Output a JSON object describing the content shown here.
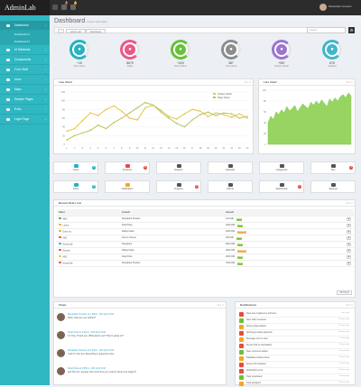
{
  "header": {
    "logo": "AdminLab",
    "badge1": "6",
    "badge2": "8",
    "user": "Mosaddek Hossain"
  },
  "sidebar": [
    {
      "label": "Dashboard",
      "active": true
    },
    {
      "label": "Dashboard 1",
      "sub": true
    },
    {
      "label": "Dashboard 2",
      "sub": true
    },
    {
      "label": "UI Elements"
    },
    {
      "label": "Components"
    },
    {
      "label": "Form Stuff"
    },
    {
      "label": "Icons"
    },
    {
      "label": "Maps"
    },
    {
      "label": "Sample Pages"
    },
    {
      "label": "Extra"
    },
    {
      "label": "Login Page"
    }
  ],
  "page": {
    "title": "Dashboard",
    "subtitle": "Content Information",
    "crumbs": [
      "Admin Lab",
      "Dashboard"
    ],
    "search_placeholder": "Search"
  },
  "stats": [
    {
      "value": "+10",
      "label": "New Users",
      "color": "#27b2bf"
    },
    {
      "value": "8675",
      "label": "Sales",
      "color": "#e95987"
    },
    {
      "value": "+320",
      "label": "New Orders",
      "color": "#68c13a"
    },
    {
      "value": "387",
      "label": "Comments",
      "color": "#8d8d8d"
    },
    {
      "value": "+987",
      "label": "Unique Visitor",
      "color": "#9b75d1"
    },
    {
      "value": "678",
      "label": "Updates",
      "color": "#42b6c9"
    }
  ],
  "charts": {
    "line_title": "Line Chart",
    "live_title": "Live Chart"
  },
  "chart_data": [
    {
      "type": "line",
      "title": "Line Chart",
      "categories": [
        "1",
        "2",
        "3",
        "4",
        "5",
        "6",
        "7",
        "8",
        "9",
        "10",
        "11",
        "12",
        "13",
        "14",
        "15",
        "16",
        "17",
        "18",
        "19",
        "20",
        "21",
        "22",
        "23",
        "24"
      ],
      "ylim": [
        0,
        120
      ],
      "legend": "top-right",
      "series": [
        {
          "name": "Unique Visitor",
          "color": "#e7c446",
          "values": [
            30,
            36,
            54,
            72,
            66,
            80,
            88,
            76,
            60,
            56,
            84,
            90,
            78,
            64,
            58,
            70,
            80,
            76,
            64,
            72,
            68,
            62,
            70,
            60
          ]
        },
        {
          "name": "Page Views",
          "color": "#b7c45a",
          "values": [
            10,
            20,
            26,
            32,
            44,
            36,
            50,
            60,
            72,
            84,
            96,
            90,
            74,
            60,
            48,
            40,
            56,
            68,
            74,
            66,
            72,
            70,
            60,
            64
          ]
        }
      ]
    },
    {
      "type": "area",
      "title": "Live Chart",
      "ylim": [
        0,
        100
      ],
      "series": [
        {
          "name": "",
          "color": "#85cc47",
          "values": [
            40,
            52,
            46,
            60,
            55,
            64,
            58,
            70,
            62,
            66,
            72,
            60,
            68,
            75,
            70,
            66,
            78,
            72,
            80,
            74,
            82,
            76,
            70,
            84,
            78,
            86,
            80,
            88,
            92,
            86,
            95,
            90
          ]
        }
      ]
    }
  ],
  "tiles": [
    {
      "label": "Users",
      "color": "#27b2bf",
      "badge": "3"
    },
    {
      "label": "Products",
      "color": "#e74c3c",
      "badge": "8"
    },
    {
      "label": "Reports",
      "color": "#555"
    },
    {
      "label": "Calendar",
      "color": "#555"
    },
    {
      "label": "Categories",
      "color": "#555"
    },
    {
      "label": "Text",
      "color": "#555",
      "badge": "3"
    },
    {
      "label": "Inbox",
      "color": "#27b2bf",
      "badge": "16"
    },
    {
      "label": "Notification",
      "color": "#f5a623"
    },
    {
      "label": "Projects",
      "color": "#555",
      "badge": "18"
    },
    {
      "label": "Clients",
      "color": "#555"
    },
    {
      "label": "Dashboard",
      "color": "#555",
      "badge": "2"
    },
    {
      "label": "Settings",
      "color": "#555"
    }
  ],
  "orders": {
    "title": "Recent Order List",
    "headers": [
      "Client",
      "Content",
      "Amount"
    ],
    "rows": [
      {
        "client": "ABC",
        "content": "Mosaddek Hossain",
        "amount": "120.00$",
        "status": "Paid",
        "sc": "#8ac43f",
        "dc": "#5aa33c"
      },
      {
        "client": "Lorem",
        "content": "Dulal Khan",
        "amount": "2400.00$",
        "status": "Paid",
        "sc": "#8ac43f",
        "dc": "#f5a623"
      },
      {
        "client": "Dolor Inc",
        "content": "Rafiqul Islam",
        "amount": "2300.00$",
        "status": "Pending",
        "sc": "#f0ad4e",
        "dc": "#f5a623"
      },
      {
        "client": "ABC",
        "content": "Sumon Ahmed",
        "amount": "250.00$",
        "status": "Paid",
        "sc": "#8ac43f",
        "dc": "#e74c3c"
      },
      {
        "client": "Nectar lab",
        "content": "Mosaddek",
        "amount": "4500.00$",
        "status": "Paid",
        "sc": "#8ac43f",
        "dc": "#27b2bf"
      },
      {
        "client": "Nectom",
        "content": "Rafiqul Islam",
        "amount": "2500.00$",
        "status": "Pending",
        "sc": "#f0ad4e",
        "dc": "#e74c3c"
      },
      {
        "client": "ABC",
        "content": "Dulal Khan",
        "amount": "2000.00$",
        "status": "Paid",
        "sc": "#8ac43f",
        "dc": "#e7c446"
      },
      {
        "client": "Nectar lab",
        "content": "Mosaddek Hossain",
        "amount": "7200.00$",
        "status": "Paid",
        "sc": "#8ac43f",
        "dc": "#e74c3c"
      }
    ],
    "more": "All Orders"
  },
  "chats": {
    "title": "Chats",
    "messages": [
      {
        "who": "Mosaddek Hossain at 1:55pm, 13th April 2013",
        "text": "Hello, How are you brother?"
      },
      {
        "who": "Dulal Khan at 2:01pm, 13th April 2013",
        "text": "I'm Fine, Thank you. What about you? How is going on?"
      },
      {
        "who": "Mosaddek Hossain at 2:03pm, 13th April 2013",
        "text": "Yeah I'm fine too. Everything is going fine here."
      },
      {
        "who": "Dulal Khan at 2:05pm, 13th April 2013",
        "text": "well fine bro. anyway how much time you need to done your project?"
      }
    ]
  },
  "notifications": {
    "title": "Notifications",
    "items": [
      {
        "text": "New user registered, pull here",
        "time": "Just now",
        "color": "#e74c3c"
      },
      {
        "text": "New order received",
        "time": "15 mins ago",
        "color": "#68c13a"
      },
      {
        "text": "Server load peaked",
        "time": "22 mins ago",
        "color": "#f5a623"
      },
      {
        "text": "Alerting pending approval",
        "time": "40 mins ago",
        "color": "#e74c3c"
      },
      {
        "text": "Message sent to user",
        "time": "1 hour ago",
        "color": "#f5a623"
      },
      {
        "text": "Server #12 is overloaded",
        "time": "2 hours ago",
        "color": "#e74c3c"
      },
      {
        "text": "New comment added",
        "time": "3 hours ago",
        "color": "#68c13a"
      },
      {
        "text": "Database backup done",
        "time": "4 hours ago",
        "color": "#f5a623"
      },
      {
        "text": "Server #3 restarted",
        "time": "5 hours ago",
        "color": "#e74c3c"
      },
      {
        "text": "Application error",
        "time": "6 hours ago",
        "color": "#e74c3c"
      },
      {
        "text": "Task completed",
        "time": "7 hours ago",
        "color": "#68c13a"
      },
      {
        "text": "Task assigned",
        "time": "8 hours ago",
        "color": "#f5a623"
      }
    ]
  }
}
